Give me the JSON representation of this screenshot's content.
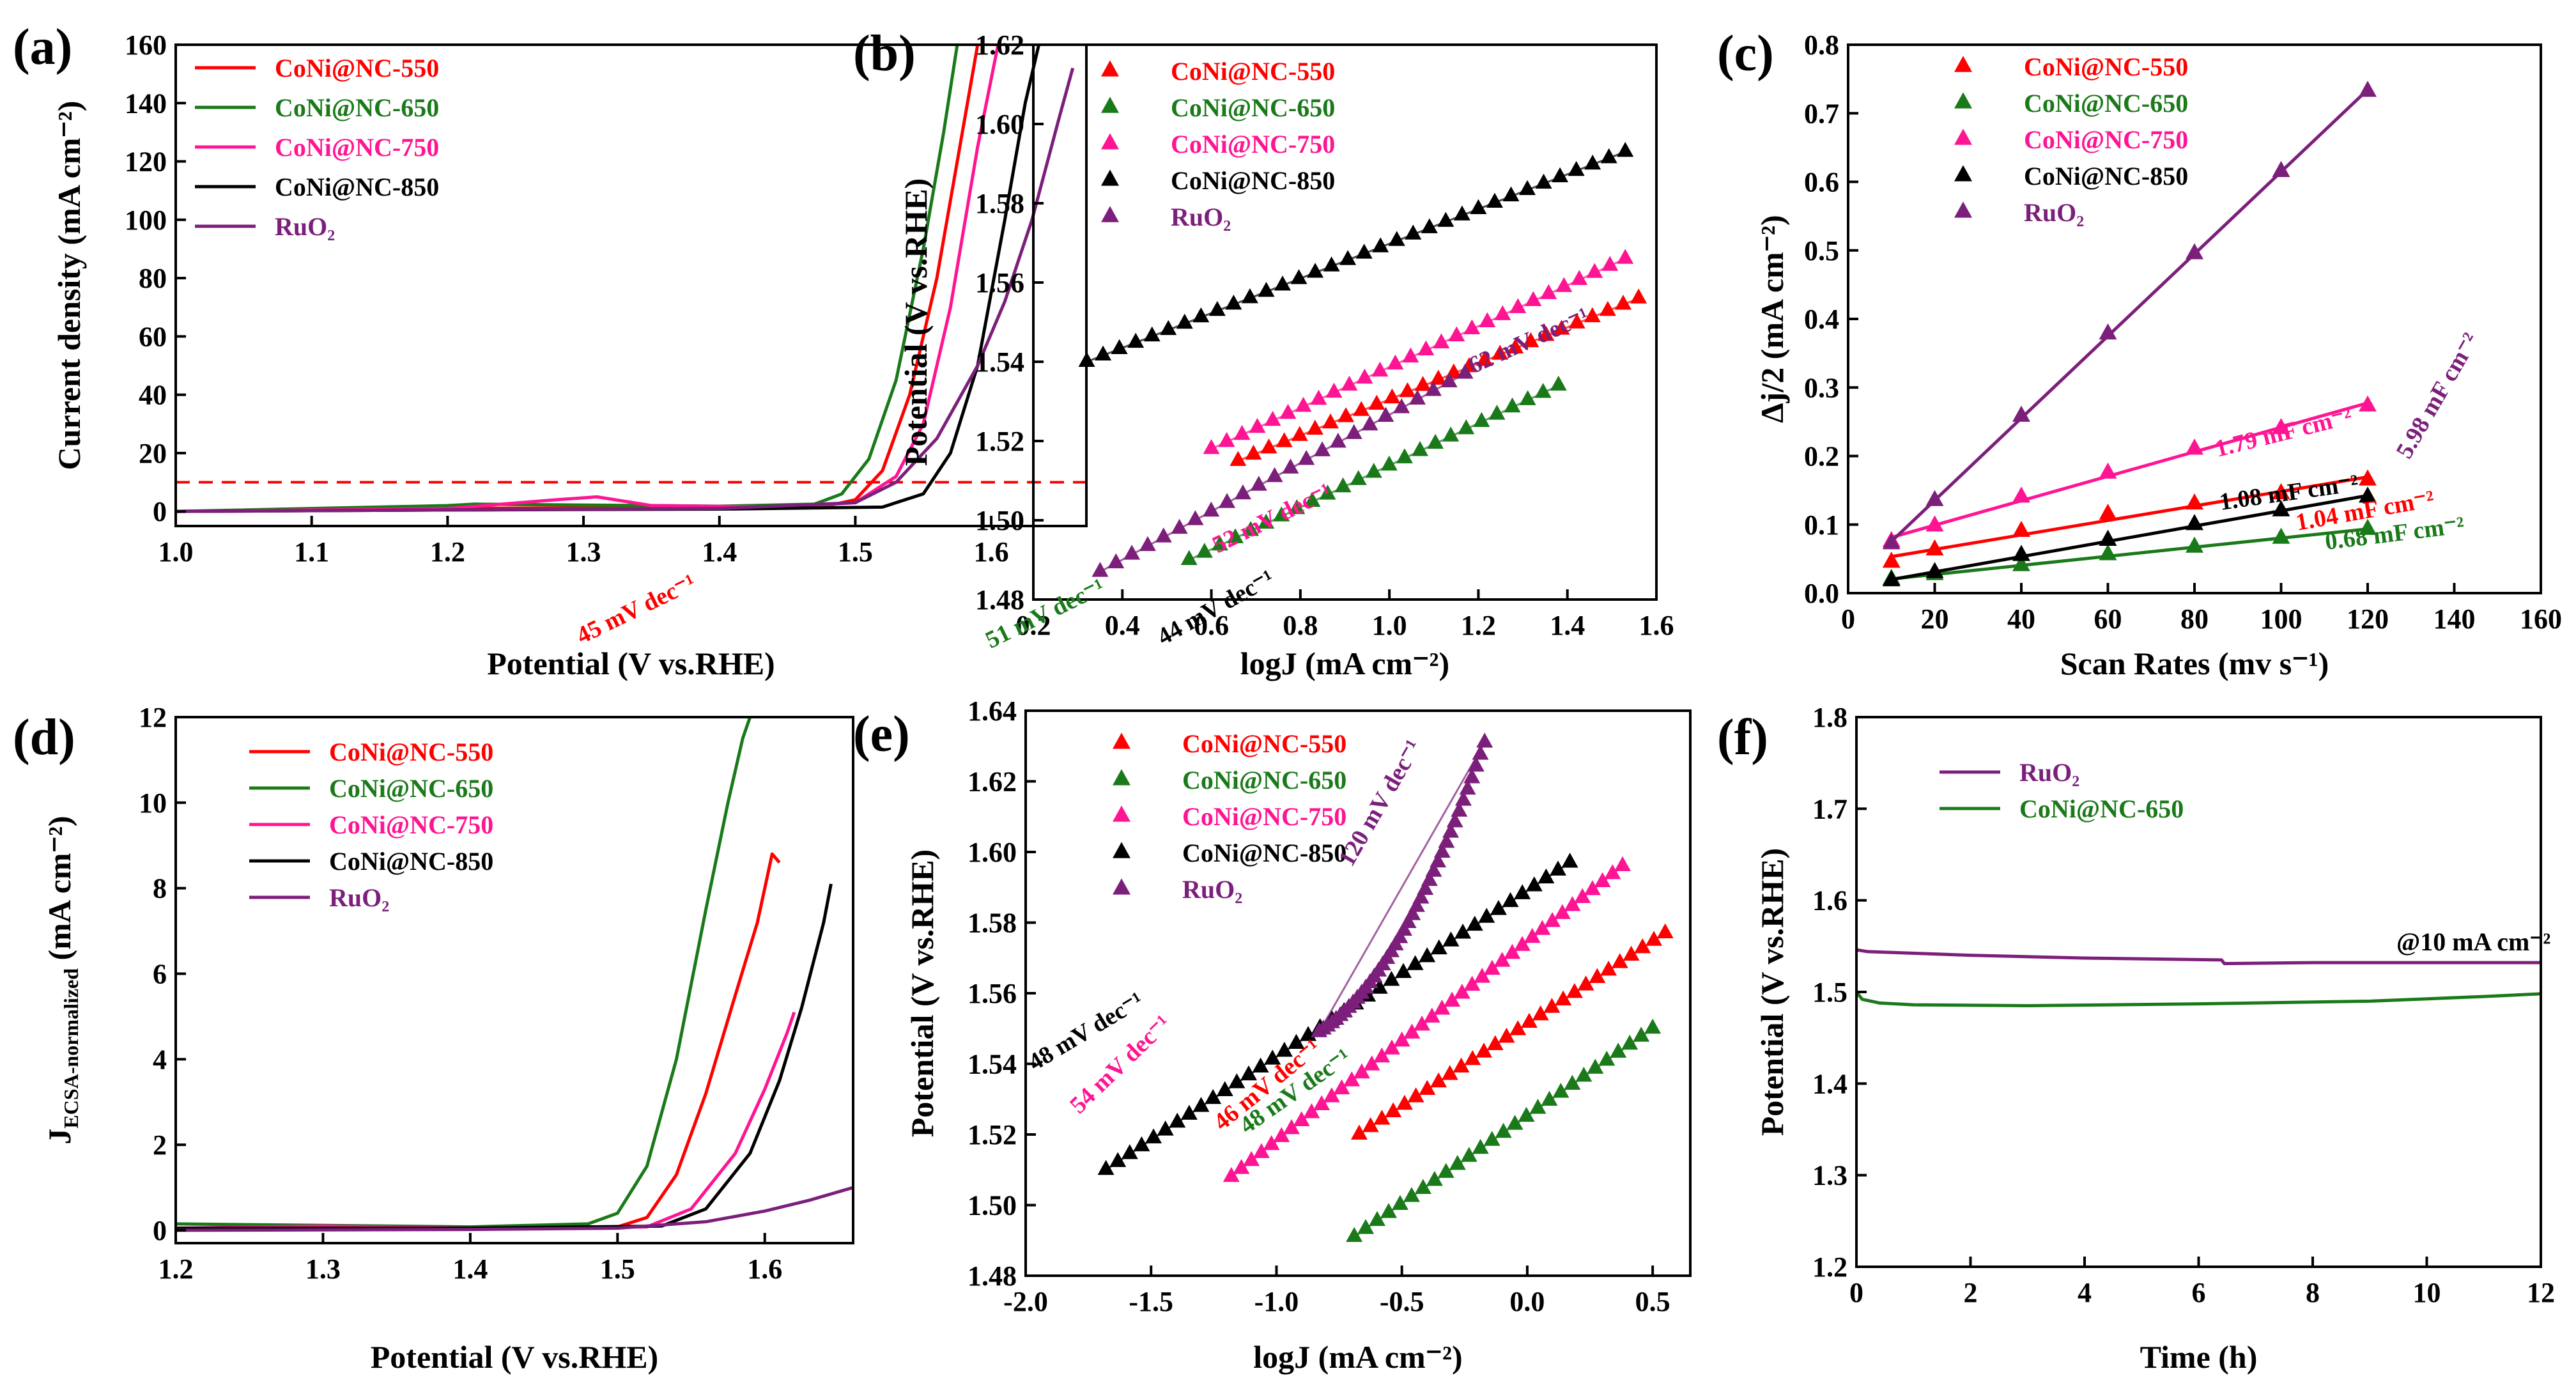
{
  "chart_data": [
    {
      "panel_label": "(a)",
      "type": "line",
      "xlabel": "Potential (V vs.RHE)",
      "ylabel": "Current density (mA cm⁻²)",
      "xlim": [
        1.0,
        1.67
      ],
      "ylim": [
        -5,
        160
      ],
      "xticks": [
        1.0,
        1.1,
        1.2,
        1.3,
        1.4,
        1.5,
        1.6
      ],
      "yticks": [
        0,
        20,
        40,
        60,
        80,
        100,
        120,
        140,
        160
      ],
      "reference_line": {
        "y": 10,
        "color": "#ff0000",
        "style": "dashed"
      },
      "legend": "top-left",
      "series": [
        {
          "name": "CoNi@NC-550",
          "color": "#ff0000",
          "x": [
            1.0,
            1.2,
            1.4,
            1.48,
            1.5,
            1.52,
            1.54,
            1.56,
            1.575,
            1.59
          ],
          "y": [
            0,
            1,
            1.5,
            2,
            4,
            14,
            40,
            80,
            120,
            160
          ]
        },
        {
          "name": "CoNi@NC-650",
          "color": "#1a7a1a",
          "x": [
            1.0,
            1.2,
            1.22,
            1.4,
            1.47,
            1.49,
            1.51,
            1.53,
            1.55,
            1.565,
            1.575
          ],
          "y": [
            0,
            2,
            2.5,
            1.8,
            2.5,
            6,
            18,
            45,
            90,
            130,
            160
          ]
        },
        {
          "name": "CoNi@NC-750",
          "color": "#ff1493",
          "x": [
            1.0,
            1.2,
            1.28,
            1.31,
            1.35,
            1.45,
            1.5,
            1.53,
            1.55,
            1.57,
            1.59,
            1.605
          ],
          "y": [
            0,
            1,
            4,
            5,
            2,
            1.5,
            3,
            12,
            30,
            70,
            125,
            160
          ]
        },
        {
          "name": "CoNi@NC-850",
          "color": "#000000",
          "x": [
            1.0,
            1.2,
            1.4,
            1.52,
            1.55,
            1.57,
            1.59,
            1.61,
            1.625,
            1.635
          ],
          "y": [
            0,
            0.5,
            0.8,
            1.5,
            6,
            20,
            50,
            100,
            140,
            160
          ]
        },
        {
          "name": "RuO₂",
          "color": "#7b1f7b",
          "x": [
            1.0,
            1.2,
            1.4,
            1.5,
            1.53,
            1.56,
            1.59,
            1.61,
            1.63,
            1.65,
            1.66
          ],
          "y": [
            0,
            0.5,
            1,
            3,
            10,
            25,
            50,
            72,
            100,
            135,
            152
          ]
        }
      ]
    },
    {
      "panel_label": "(b)",
      "type": "scatter",
      "marker": "triangle",
      "xlabel": "logJ (mA cm⁻²)",
      "ylabel": "Potential (V vs.RHE)",
      "xlim": [
        0.2,
        1.6
      ],
      "ylim": [
        1.48,
        1.62
      ],
      "xticks": [
        0.2,
        0.4,
        0.6,
        0.8,
        1.0,
        1.2,
        1.4,
        1.6
      ],
      "yticks": [
        1.48,
        1.5,
        1.52,
        1.54,
        1.56,
        1.58,
        1.6,
        1.62
      ],
      "legend": "top-left",
      "series": [
        {
          "name": "CoNi@NC-550",
          "color": "#ff0000",
          "x_start": 0.66,
          "x_end": 1.56,
          "y_start": 1.515,
          "y_end": 1.556,
          "count": 27,
          "slope_label": "45 mV dec⁻¹"
        },
        {
          "name": "CoNi@NC-650",
          "color": "#1a7a1a",
          "x_start": 0.55,
          "x_end": 1.38,
          "y_start": 1.49,
          "y_end": 1.534,
          "count": 25,
          "slope_label": "51 mV dec⁻¹"
        },
        {
          "name": "CoNi@NC-750",
          "color": "#ff1493",
          "x_start": 0.6,
          "x_end": 1.53,
          "y_start": 1.518,
          "y_end": 1.566,
          "count": 28,
          "slope_label": "52 mV dec⁻¹"
        },
        {
          "name": "CoNi@NC-850",
          "color": "#000000",
          "x_start": 0.32,
          "x_end": 1.53,
          "y_start": 1.54,
          "y_end": 1.593,
          "count": 34,
          "slope_label": "44 mV dec⁻¹"
        },
        {
          "name": "RuO₂",
          "color": "#7b1f7b",
          "x_start": 0.35,
          "x_end": 1.17,
          "y_start": 1.487,
          "y_end": 1.537,
          "count": 24,
          "slope_label": "62 mV dec⁻¹"
        }
      ]
    },
    {
      "panel_label": "(c)",
      "type": "scatter",
      "marker": "triangle",
      "xlabel": "Scan Rates (mv s⁻¹)",
      "ylabel": "Δj/2 (mA cm⁻²)",
      "xlim": [
        0,
        160
      ],
      "ylim": [
        0,
        0.8
      ],
      "xticks": [
        0,
        20,
        40,
        60,
        80,
        100,
        120,
        140,
        160
      ],
      "yticks": [
        0.0,
        0.1,
        0.2,
        0.3,
        0.4,
        0.5,
        0.6,
        0.7,
        0.8
      ],
      "legend": "top-left",
      "x": [
        10,
        20,
        40,
        60,
        80,
        100,
        120
      ],
      "series": [
        {
          "name": "CoNi@NC-550",
          "color": "#ff0000",
          "values": [
            0.045,
            0.063,
            0.09,
            0.115,
            0.13,
            0.145,
            0.165
          ],
          "fit_label": "1.04 mF cm⁻²"
        },
        {
          "name": "CoNi@NC-650",
          "color": "#1a7a1a",
          "values": [
            0.02,
            0.027,
            0.04,
            0.056,
            0.067,
            0.08,
            0.093
          ],
          "fit_label": "0.68 mF cm⁻²"
        },
        {
          "name": "CoNi@NC-750",
          "color": "#ff1493",
          "values": [
            0.075,
            0.098,
            0.14,
            0.175,
            0.21,
            0.24,
            0.273
          ],
          "fit_label": "1.79 mF cm⁻²"
        },
        {
          "name": "CoNi@NC-850",
          "color": "#000000",
          "values": [
            0.018,
            0.03,
            0.055,
            0.077,
            0.1,
            0.12,
            0.14
          ],
          "fit_label": "1.08 mF cm⁻²"
        },
        {
          "name": "RuO₂",
          "color": "#7b1f7b",
          "values": [
            0.072,
            0.135,
            0.258,
            0.378,
            0.495,
            0.615,
            0.732
          ],
          "fit_label": "5.98 mF cm⁻²"
        }
      ]
    },
    {
      "panel_label": "(d)",
      "type": "line",
      "xlabel": "Potential (V vs.RHE)",
      "ylabel_main": "J",
      "ylabel_sub": "ECSA-normalized",
      "ylabel_unit": "(mA cm⁻²)",
      "xlim": [
        1.2,
        1.66
      ],
      "ylim": [
        -0.3,
        12
      ],
      "xticks": [
        1.2,
        1.3,
        1.4,
        1.5,
        1.6
      ],
      "yticks": [
        0,
        2,
        4,
        6,
        8,
        10,
        12
      ],
      "legend": "top-left",
      "series": [
        {
          "name": "CoNi@NC-550",
          "color": "#ff0000",
          "x": [
            1.2,
            1.4,
            1.5,
            1.52,
            1.54,
            1.56,
            1.58,
            1.595,
            1.605,
            1.61
          ],
          "y": [
            0.05,
            0.05,
            0.08,
            0.3,
            1.3,
            3.2,
            5.5,
            7.2,
            8.8,
            8.6
          ]
        },
        {
          "name": "CoNi@NC-650",
          "color": "#1a7a1a",
          "x": [
            1.2,
            1.4,
            1.48,
            1.5,
            1.52,
            1.54,
            1.56,
            1.575,
            1.585,
            1.59
          ],
          "y": [
            0.15,
            0.08,
            0.15,
            0.4,
            1.5,
            4,
            7.5,
            10,
            11.5,
            12
          ]
        },
        {
          "name": "CoNi@NC-750",
          "color": "#ff1493",
          "x": [
            1.2,
            1.3,
            1.4,
            1.52,
            1.55,
            1.58,
            1.6,
            1.615,
            1.62
          ],
          "y": [
            0.05,
            0.1,
            0.05,
            0.08,
            0.5,
            1.8,
            3.3,
            4.6,
            5.1
          ]
        },
        {
          "name": "CoNi@NC-850",
          "color": "#000000",
          "x": [
            1.2,
            1.4,
            1.53,
            1.56,
            1.59,
            1.61,
            1.625,
            1.64,
            1.645
          ],
          "y": [
            0.05,
            0.05,
            0.1,
            0.5,
            1.8,
            3.5,
            5.2,
            7.2,
            8.1
          ]
        },
        {
          "name": "RuO₂",
          "color": "#7b1f7b",
          "x": [
            1.2,
            1.4,
            1.5,
            1.56,
            1.6,
            1.63,
            1.66
          ],
          "y": [
            0.0,
            0.02,
            0.05,
            0.2,
            0.45,
            0.7,
            1.0
          ]
        }
      ]
    },
    {
      "panel_label": "(e)",
      "type": "scatter",
      "marker": "triangle",
      "xlabel": "logJ (mA cm⁻²)",
      "ylabel": "Potential (V vs.RHE)",
      "xlim": [
        -2.0,
        0.65
      ],
      "ylim": [
        1.48,
        1.64
      ],
      "xticks": [
        -2.0,
        -1.5,
        -1.0,
        -0.5,
        0.0,
        0.5
      ],
      "yticks": [
        1.48,
        1.5,
        1.52,
        1.54,
        1.56,
        1.58,
        1.6,
        1.62,
        1.64
      ],
      "legend": "top-left",
      "series": [
        {
          "name": "CoNi@NC-550",
          "color": "#ff0000",
          "x_start": -0.67,
          "x_end": 0.55,
          "y_start": 1.52,
          "y_end": 1.577,
          "count": 28,
          "slope_label": "46 mV dec⁻¹"
        },
        {
          "name": "CoNi@NC-650",
          "color": "#1a7a1a",
          "x_start": -0.69,
          "x_end": 0.5,
          "y_start": 1.491,
          "y_end": 1.55,
          "count": 27,
          "slope_label": "48 mV dec⁻¹"
        },
        {
          "name": "CoNi@NC-750",
          "color": "#ff1493",
          "x_start": -1.18,
          "x_end": 0.38,
          "y_start": 1.508,
          "y_end": 1.596,
          "count": 40,
          "slope_label": "54 mV dec⁻¹"
        },
        {
          "name": "CoNi@NC-850",
          "color": "#000000",
          "x_start": -1.68,
          "x_end": 0.17,
          "y_start": 1.51,
          "y_end": 1.597,
          "count": 40,
          "slope_label": "48 mV dec⁻¹"
        },
        {
          "name": "RuO₂",
          "color": "#7b1f7b",
          "x_start": -0.83,
          "x_end": -0.17,
          "y_start": 1.549,
          "y_end": 1.631,
          "count": 40,
          "slope_label": "120 mV dec⁻¹"
        }
      ]
    },
    {
      "panel_label": "(f)",
      "type": "line",
      "xlabel": "Time (h)",
      "ylabel": "Potential (V vs.RHE)",
      "xlim": [
        0,
        12
      ],
      "ylim": [
        1.2,
        1.8
      ],
      "xticks": [
        0,
        2,
        4,
        6,
        8,
        10,
        12
      ],
      "yticks": [
        1.2,
        1.3,
        1.4,
        1.5,
        1.6,
        1.7,
        1.8
      ],
      "annotation": "@10 mA cm⁻²",
      "legend": "top-left",
      "series": [
        {
          "name": "RuO₂",
          "color": "#7b1f7b",
          "x": [
            0,
            0.2,
            2,
            4,
            6.4,
            6.45,
            8,
            10,
            12
          ],
          "y": [
            1.546,
            1.544,
            1.54,
            1.537,
            1.535,
            1.531,
            1.532,
            1.532,
            1.532
          ]
        },
        {
          "name": "CoNi@NC-650",
          "color": "#1a7a1a",
          "x": [
            0,
            0.1,
            0.4,
            1,
            3,
            6,
            9,
            11,
            12
          ],
          "y": [
            1.5,
            1.492,
            1.488,
            1.486,
            1.485,
            1.487,
            1.49,
            1.495,
            1.498
          ]
        }
      ]
    }
  ]
}
